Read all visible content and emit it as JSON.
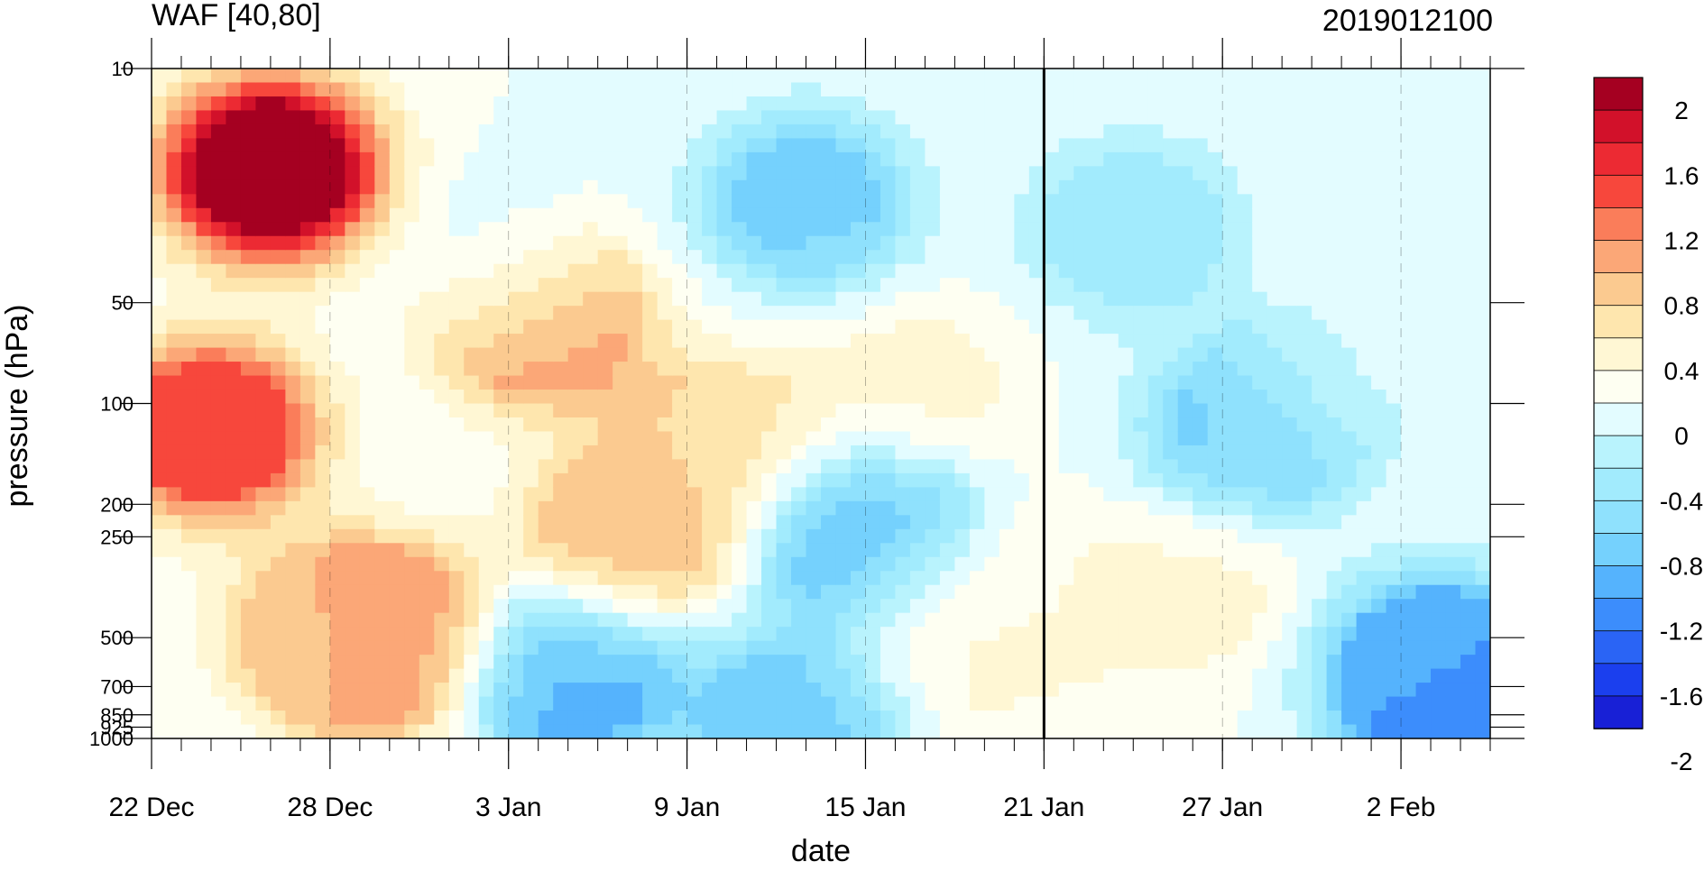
{
  "chart_data": {
    "type": "heatmap",
    "title_left": "WAF [40,80]",
    "title_right": "2019012100",
    "xlabel": "date",
    "ylabel": "pressure (hPa)",
    "x_ticks": [
      {
        "label": "22 Dec",
        "day": 0
      },
      {
        "label": "28 Dec",
        "day": 6
      },
      {
        "label": "3 Jan",
        "day": 12
      },
      {
        "label": "9 Jan",
        "day": 18
      },
      {
        "label": "15 Jan",
        "day": 24
      },
      {
        "label": "21 Jan",
        "day": 30
      },
      {
        "label": "27 Jan",
        "day": 36
      },
      {
        "label": "2 Feb",
        "day": 42
      }
    ],
    "x_range_days": [
      0,
      45
    ],
    "y_ticks": [
      {
        "label": "10",
        "p": 10
      },
      {
        "label": "50",
        "p": 50
      },
      {
        "label": "100",
        "p": 100
      },
      {
        "label": "200",
        "p": 200
      },
      {
        "label": "250",
        "p": 250
      },
      {
        "label": "500",
        "p": 500
      },
      {
        "label": "700",
        "p": 700
      },
      {
        "label": "850",
        "p": 850
      },
      {
        "label": "925",
        "p": 925
      },
      {
        "label": "1000",
        "p": 1000
      }
    ],
    "y_scale": "log",
    "y_range": [
      1000,
      10
    ],
    "analysis_date_day": 30,
    "colorbar": {
      "labels": [
        "2",
        "1.6",
        "1.2",
        "0.8",
        "0.4",
        "0",
        "-0.4",
        "-0.8",
        "-1.2",
        "-1.6",
        "-2"
      ],
      "colors": [
        "#a50021",
        "#d2112a",
        "#ec2a33",
        "#f7473c",
        "#fa7d5a",
        "#fba777",
        "#fbca90",
        "#fee6ae",
        "#fff7d4",
        "#fefff2",
        "#e3fcff",
        "#b9f3fd",
        "#a2ebfd",
        "#8fe1fd",
        "#75d1fd",
        "#55b3fd",
        "#3c8dfc",
        "#2a64f5",
        "#1b3fee",
        "#1820d6"
      ]
    },
    "features": [
      {
        "day": 4,
        "p": 20,
        "value": 2.2
      },
      {
        "day": 2,
        "p": 120,
        "value": 1.5
      },
      {
        "day": 6,
        "p": 500,
        "value": 0.6
      },
      {
        "day": 7.8,
        "p": 500,
        "value": 1.3
      },
      {
        "day": 13,
        "p": 55,
        "value": 1.3
      },
      {
        "day": 16,
        "p": 250,
        "value": 0.9
      },
      {
        "day": 19,
        "p": 130,
        "value": 0.6
      },
      {
        "day": 12,
        "p": 40,
        "value": -0.4
      },
      {
        "day": 14,
        "p": 650,
        "value": -1.2
      },
      {
        "day": 22,
        "p": 25,
        "value": -0.9
      },
      {
        "day": 25.5,
        "p": 90,
        "value": 0.3
      },
      {
        "day": 27,
        "p": 480,
        "value": 0.3
      },
      {
        "day": 24,
        "p": 250,
        "value": -1.2
      },
      {
        "day": 33,
        "p": 30,
        "value": -0.6
      },
      {
        "day": 35,
        "p": 350,
        "value": 0.3
      },
      {
        "day": 37,
        "p": 120,
        "value": -1.0
      },
      {
        "day": 40,
        "p": 80,
        "value": -0.1
      },
      {
        "day": 43,
        "p": 600,
        "value": -1.2
      },
      {
        "day": 44.5,
        "p": 850,
        "value": -1.5
      },
      {
        "day": 21.5,
        "p": 900,
        "value": -1.0
      },
      {
        "day": 30,
        "p": 400,
        "value": 0.2
      }
    ]
  }
}
